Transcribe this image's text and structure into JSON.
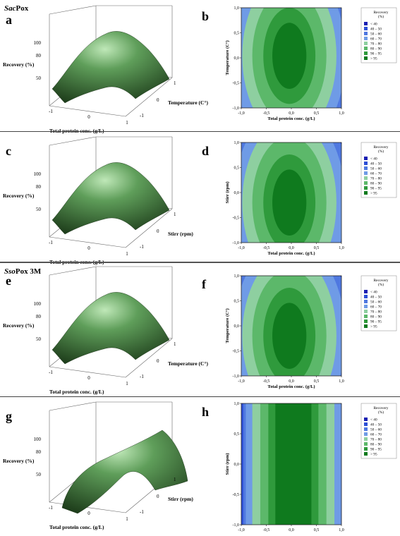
{
  "group_titles": [
    {
      "italic": "Sac",
      "rest": "Pox"
    },
    {
      "italic": "Sso",
      "rest": "Pox 3M"
    }
  ],
  "colors": {
    "c1": "#1a1fb3",
    "c2": "#2d4fd6",
    "c3": "#4f78e0",
    "c4": "#6f9be6",
    "c5": "#8ecfa0",
    "c6": "#5cb86a",
    "c7": "#2f9a3c",
    "c8": "#0f7a1e",
    "surface_dark": "#1f3f1c",
    "surface_light": "#bfe8b8"
  },
  "chart_data": [
    {
      "panel": "a",
      "type": "surface3d",
      "zlabel": "Recovery (%)",
      "xlabel": "Total protein conc. (g/L)",
      "ylabel": "Temperature (C°)",
      "xticks": [
        "-1",
        "0",
        "1"
      ],
      "yticks": [
        "-1",
        "0",
        "1"
      ],
      "zticks": [
        "50",
        "80",
        "100"
      ]
    },
    {
      "panel": "b",
      "type": "contour",
      "xlabel": "Total protein conc. (g/L)",
      "ylabel": "Temperature (C°)",
      "xticks": [
        "-1,0",
        "-0,5",
        "0,0",
        "0,5",
        "1,0"
      ],
      "yticks": [
        "-1,0",
        "-0,5",
        "0,0",
        "0,5",
        "1,0"
      ],
      "legend_title": [
        "Recovery",
        "(%)"
      ],
      "legend": [
        "< 40",
        "40 – 50",
        "50 – 60",
        "60 – 70",
        "70 – 80",
        "80 – 90",
        "90 – 95",
        "> 95"
      ]
    },
    {
      "panel": "c",
      "type": "surface3d",
      "zlabel": "Recovery (%)",
      "xlabel": "Total protein conc. (g/L)",
      "ylabel": "Stirr (rpm)",
      "xticks": [
        "-1",
        "0",
        "1"
      ],
      "yticks": [
        "-1",
        "0",
        "1"
      ],
      "zticks": [
        "50",
        "80",
        "100"
      ]
    },
    {
      "panel": "d",
      "type": "contour",
      "xlabel": "Total protein conc. (g/L)",
      "ylabel": "Stirr (rpm)",
      "xticks": [
        "-1,0",
        "-0,5",
        "0,0",
        "0,5",
        "1,0"
      ],
      "yticks": [
        "-1,0",
        "-0,5",
        "0,0",
        "0,5",
        "1,0"
      ],
      "legend_title": [
        "Recovery",
        "(%)"
      ],
      "legend": [
        "< 40",
        "40 – 50",
        "50 – 60",
        "60 – 70",
        "70 – 80",
        "80 – 90",
        "90 – 95",
        "> 95"
      ]
    },
    {
      "panel": "e",
      "type": "surface3d",
      "zlabel": "Recovery (%)",
      "xlabel": "Total protein conc. (g/L)",
      "ylabel": "Temperature (C°)",
      "xticks": [
        "-1",
        "0",
        "1"
      ],
      "yticks": [
        "-1",
        "0",
        "1"
      ],
      "zticks": [
        "50",
        "80",
        "100"
      ]
    },
    {
      "panel": "f",
      "type": "contour",
      "xlabel": "Total protein conc. (g/L)",
      "ylabel": "Temperature (C°)",
      "xticks": [
        "-1,0",
        "-0,5",
        "0,0",
        "0,5",
        "1,0"
      ],
      "yticks": [
        "-1,0",
        "-0,5",
        "0,0",
        "0,5",
        "1,0"
      ],
      "legend_title": [
        "Recovery",
        "(%)"
      ],
      "legend": [
        "< 40",
        "40 – 50",
        "50 – 60",
        "60 – 70",
        "70 – 80",
        "80 – 90",
        "90 – 95",
        "> 95"
      ]
    },
    {
      "panel": "g",
      "type": "surface3d",
      "zlabel": "Recovery (%)",
      "xlabel": "Total protein conc. (g/L)",
      "ylabel": "Stirr (rpm)",
      "xticks": [
        "-1",
        "0",
        "1"
      ],
      "yticks": [
        "-1",
        "0",
        "1"
      ],
      "zticks": [
        "50",
        "80",
        "100"
      ]
    },
    {
      "panel": "h",
      "type": "contour",
      "xlabel": "Total protein conc. (g/L)",
      "ylabel": "Stirr (rpm)",
      "xticks": [
        "-1,0",
        "-0,5",
        "0,0",
        "0,5",
        "1,0"
      ],
      "yticks": [
        "-1,0",
        "-0,5",
        "0,0",
        "0,5",
        "1,0"
      ],
      "legend_title": [
        "Recovery",
        "(%)"
      ],
      "legend": [
        "< 40",
        "40 – 50",
        "50 – 60",
        "60 – 70",
        "70 – 80",
        "80 – 90",
        "90 – 95",
        "> 95"
      ]
    }
  ]
}
